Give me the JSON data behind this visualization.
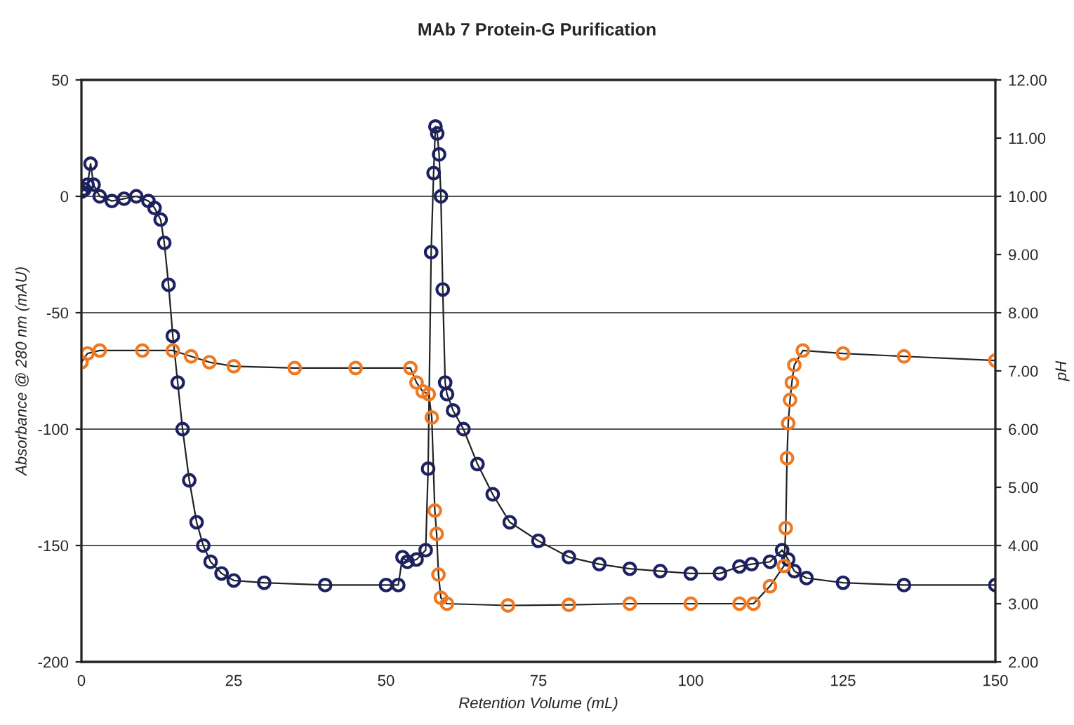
{
  "chart_data": {
    "type": "line",
    "title": "MAb 7 Protein-G Purification",
    "xlabel": "Retention Volume (mL)",
    "ylabel": "Absorbance @ 280 nm (mAU)",
    "y2label": "pH",
    "xlim": [
      0,
      150
    ],
    "xticks": [
      0,
      25,
      50,
      75,
      100,
      125,
      150
    ],
    "ylim": [
      -200,
      50
    ],
    "yticks": [
      -200,
      -150,
      -100,
      -50,
      0,
      50
    ],
    "y2lim": [
      2,
      12
    ],
    "y2ticks": [
      {
        "value": 2,
        "label": "2.00"
      },
      {
        "value": 3,
        "label": "3.00"
      },
      {
        "value": 4,
        "label": "4.00"
      },
      {
        "value": 5,
        "label": "5.00"
      },
      {
        "value": 6,
        "label": "6.00"
      },
      {
        "value": 7,
        "label": "7.00"
      },
      {
        "value": 8,
        "label": "8.00"
      },
      {
        "value": 9,
        "label": "9.00"
      },
      {
        "value": 10,
        "label": "10.00"
      },
      {
        "value": 11,
        "label": "11.00"
      },
      {
        "value": 12,
        "label": "12.00"
      }
    ],
    "grid": "y",
    "marker": "circle",
    "line_style": "solid",
    "series": [
      {
        "color": "#1c2160",
        "x": [
          0,
          0.5,
          1,
          1.5,
          2,
          3,
          5,
          7,
          9,
          11,
          12,
          13,
          13.6,
          14.3,
          15,
          15.8,
          16.6,
          17.7,
          18.9,
          20,
          21.2,
          23,
          25,
          30,
          40,
          50,
          52,
          52.7,
          53.5,
          55,
          56.5,
          56.9,
          57.4,
          57.8,
          58.1,
          58.4,
          58.7,
          59,
          59.3,
          59.7,
          60,
          61,
          62.7,
          65,
          67.5,
          70.3,
          75,
          80,
          85,
          90,
          95,
          100,
          104.8,
          108,
          110,
          113,
          115,
          116,
          117,
          119,
          125,
          135,
          150
        ],
        "values": [
          2,
          3,
          5,
          14,
          5,
          0,
          -2,
          -1,
          0,
          -2,
          -5,
          -10,
          -20,
          -38,
          -60,
          -80,
          -100,
          -122,
          -140,
          -150,
          -157,
          -162,
          -165,
          -166,
          -167,
          -167,
          -167,
          -155,
          -157,
          -156,
          -152,
          -117,
          -24,
          10,
          30,
          27,
          18,
          0,
          -40,
          -80,
          -85,
          -92,
          -100,
          -115,
          -128,
          -140,
          -148,
          -155,
          -158,
          -160,
          -161,
          -162,
          -162,
          -159,
          -158,
          -157,
          -152,
          -156,
          -161,
          -164,
          -166,
          -167,
          -167
        ]
      },
      {
        "color": "#f07820",
        "axis": "y2",
        "x": [
          0,
          1,
          3,
          10,
          15,
          18,
          21,
          25,
          35,
          45,
          54,
          55,
          56,
          57,
          57.5,
          58,
          58.3,
          58.6,
          59,
          60,
          70,
          80,
          90,
          100,
          108,
          110.3,
          113,
          115.3,
          115.6,
          115.8,
          116,
          116.3,
          116.6,
          117,
          118.4,
          125,
          135,
          150
        ],
        "values": [
          7.15,
          7.3,
          7.35,
          7.35,
          7.35,
          7.25,
          7.15,
          7.08,
          7.05,
          7.05,
          7.05,
          6.8,
          6.65,
          6.6,
          6.2,
          4.6,
          4.2,
          3.5,
          3.1,
          3.0,
          2.97,
          2.98,
          3.0,
          3.0,
          3.0,
          3.0,
          3.3,
          3.65,
          4.3,
          5.5,
          6.1,
          6.5,
          6.8,
          7.1,
          7.35,
          7.3,
          7.25,
          7.18
        ]
      }
    ]
  }
}
